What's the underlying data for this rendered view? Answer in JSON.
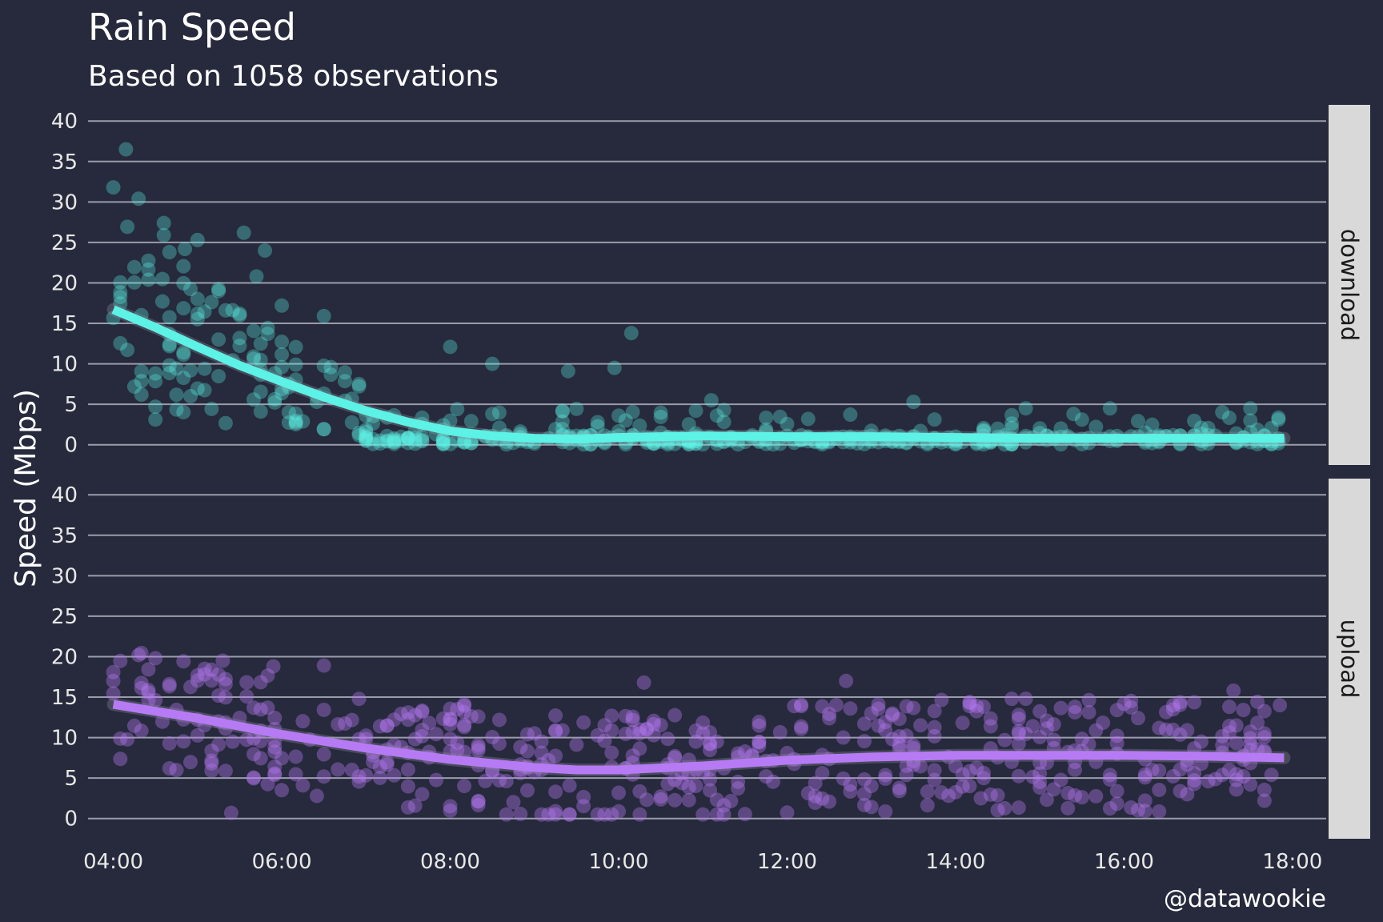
{
  "title": "Rain Speed",
  "subtitle": "Based on 1058 observations",
  "caption": "@datawookie",
  "chart_data": {
    "type": "scatter",
    "ylabel": "Speed (Mbps)",
    "xlabel": "",
    "x_ticks": [
      "04:00",
      "06:00",
      "08:00",
      "10:00",
      "12:00",
      "14:00",
      "16:00",
      "18:00"
    ],
    "x_tick_hours": [
      4,
      6,
      8,
      10,
      12,
      14,
      16,
      18
    ],
    "y_ticks": [
      0,
      5,
      10,
      15,
      20,
      25,
      30,
      35,
      40
    ],
    "xlim_hours": [
      3.7,
      18.4
    ],
    "ylim": [
      -2.5,
      42
    ],
    "observations": 1058,
    "panels": [
      {
        "name": "download",
        "color": "#5cf2e6",
        "smooth_hours": [
          4.0,
          4.5,
          5.0,
          5.5,
          6.0,
          6.5,
          7.0,
          7.5,
          8.0,
          8.5,
          9.0,
          9.5,
          10.0,
          11.0,
          12.0,
          13.0,
          14.0,
          15.0,
          16.0,
          17.0,
          17.9
        ],
        "smooth_values": [
          16.7,
          14.5,
          12.1,
          9.8,
          7.8,
          5.9,
          4.2,
          2.8,
          1.7,
          1.1,
          0.8,
          0.7,
          0.9,
          1.1,
          1.0,
          1.0,
          0.9,
          0.8,
          0.8,
          0.8,
          0.8
        ],
        "highlight_points": [
          {
            "hour": 4.0,
            "value": 31.8
          },
          {
            "hour": 4.15,
            "value": 36.5
          },
          {
            "hour": 4.3,
            "value": 30.4
          },
          {
            "hour": 4.6,
            "value": 27.4
          },
          {
            "hour": 4.6,
            "value": 25.9
          },
          {
            "hour": 4.85,
            "value": 24.2
          },
          {
            "hour": 5.0,
            "value": 25.3
          },
          {
            "hour": 5.55,
            "value": 26.2
          },
          {
            "hour": 5.8,
            "value": 24.0
          },
          {
            "hour": 5.7,
            "value": 20.8
          },
          {
            "hour": 6.0,
            "value": 17.2
          },
          {
            "hour": 6.5,
            "value": 15.9
          },
          {
            "hour": 8.0,
            "value": 12.1
          },
          {
            "hour": 8.5,
            "value": 10.0
          },
          {
            "hour": 9.4,
            "value": 9.1
          },
          {
            "hour": 9.95,
            "value": 9.5
          },
          {
            "hour": 10.15,
            "value": 13.8
          },
          {
            "hour": 11.1,
            "value": 5.5
          },
          {
            "hour": 13.5,
            "value": 5.3
          },
          {
            "hour": 15.4,
            "value": 3.8
          }
        ]
      },
      {
        "name": "upload",
        "color": "#b77af5",
        "smooth_hours": [
          4.0,
          5.0,
          6.0,
          7.0,
          8.0,
          9.0,
          9.5,
          10.0,
          11.0,
          12.0,
          13.0,
          14.0,
          15.0,
          16.0,
          17.0,
          17.9
        ],
        "smooth_values": [
          14.1,
          12.4,
          10.4,
          8.7,
          7.3,
          6.3,
          6.0,
          6.0,
          6.5,
          7.2,
          7.6,
          7.8,
          7.8,
          7.8,
          7.7,
          7.5
        ],
        "highlight_points": [
          {
            "hour": 4.0,
            "value": 17.0
          },
          {
            "hour": 4.3,
            "value": 20.2
          },
          {
            "hour": 4.5,
            "value": 19.8
          },
          {
            "hour": 5.3,
            "value": 19.5
          },
          {
            "hour": 5.9,
            "value": 18.8
          },
          {
            "hour": 6.5,
            "value": 18.9
          },
          {
            "hour": 10.3,
            "value": 16.8
          },
          {
            "hour": 12.7,
            "value": 17.0
          },
          {
            "hour": 17.3,
            "value": 15.8
          },
          {
            "hour": 17.85,
            "value": 14.0
          },
          {
            "hour": 5.4,
            "value": 0.7
          },
          {
            "hour": 14.3,
            "value": 2.5
          }
        ]
      }
    ]
  }
}
